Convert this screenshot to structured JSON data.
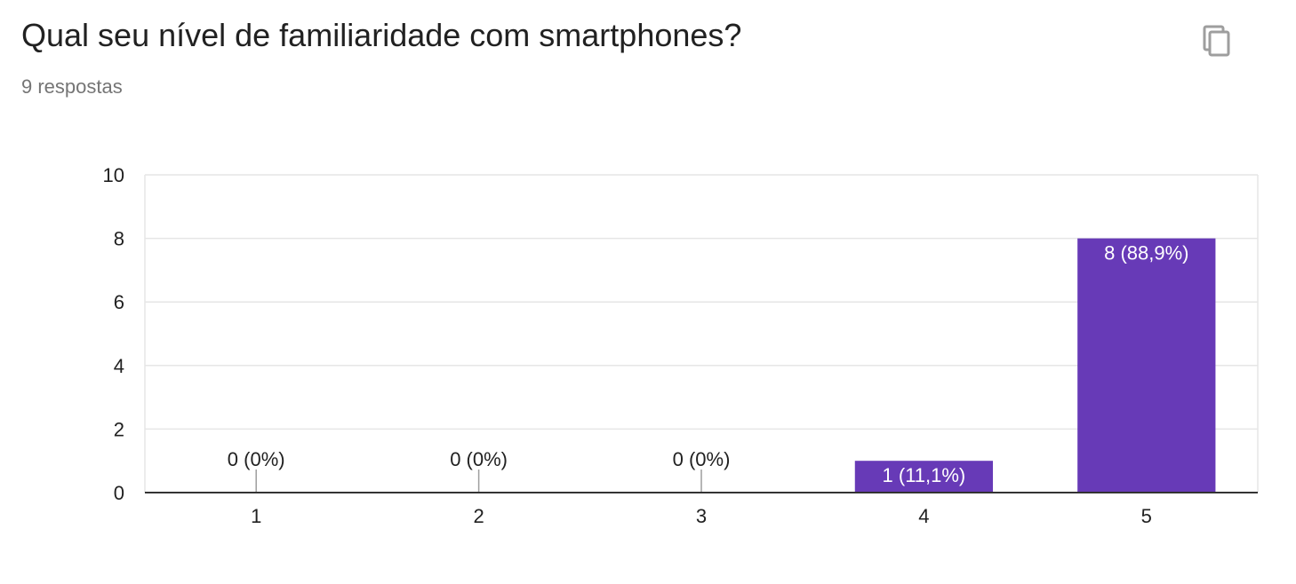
{
  "question": {
    "title": "Qual seu nível de familiaridade com smartphones?",
    "responses": "9 respostas",
    "copy_icon": "copy-icon"
  },
  "colors": {
    "bar": "#673ab7",
    "grid": "#e6e6e6",
    "axis": "#333333",
    "tick_text": "#212121",
    "label_on_bar": "#ffffff",
    "label_above": "#212121"
  },
  "chart_data": {
    "type": "bar",
    "categories": [
      "1",
      "2",
      "3",
      "4",
      "5"
    ],
    "values": [
      0,
      0,
      0,
      1,
      8
    ],
    "data_labels": [
      "0 (0%)",
      "0 (0%)",
      "0 (0%)",
      "1 (11,1%)",
      "8 (88,9%)"
    ],
    "ylim": [
      0,
      10
    ],
    "yticks": [
      0,
      2,
      4,
      6,
      8,
      10
    ],
    "grid": true,
    "legend": "none",
    "xlabel": "",
    "ylabel": ""
  }
}
